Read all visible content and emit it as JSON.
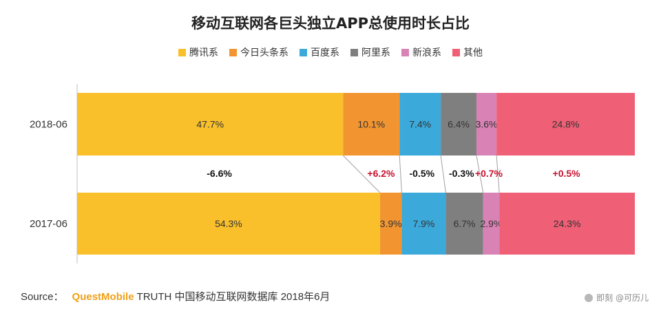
{
  "chart_data": {
    "type": "bar",
    "orientation": "horizontal",
    "stacked": true,
    "normalized": "100%",
    "title": "移动互联网各巨头独立APP总使用时长占比",
    "categories": [
      "2018-06",
      "2017-06"
    ],
    "series": [
      {
        "name": "腾讯系",
        "color": "#f9c02b",
        "values": [
          47.7,
          54.3
        ]
      },
      {
        "name": "今日头条系",
        "color": "#f29531",
        "values": [
          10.1,
          3.9
        ]
      },
      {
        "name": "百度系",
        "color": "#3ba9da",
        "values": [
          7.4,
          7.9
        ]
      },
      {
        "name": "阿里系",
        "color": "#7f7f7f",
        "values": [
          6.4,
          6.7
        ]
      },
      {
        "name": "新浪系",
        "color": "#d982b5",
        "values": [
          3.6,
          2.9
        ]
      },
      {
        "name": "其他",
        "color": "#ef5f75",
        "values": [
          24.8,
          24.3
        ]
      }
    ],
    "value_labels": [
      [
        "47.7%",
        "10.1%",
        "7.4%",
        "6.4%",
        "3.6%",
        "24.8%"
      ],
      [
        "54.3%",
        "3.9%",
        "7.9%",
        "6.7%",
        "2.9%",
        "24.3%"
      ]
    ],
    "changes": [
      "-6.6%",
      "+6.2%",
      "-0.5%",
      "-0.3%",
      "+0.7%",
      "+0.5%"
    ],
    "change_colors": {
      "negative": "#111111",
      "positive": "#c8102e"
    },
    "legend_position": "top",
    "grid": false
  },
  "footer": {
    "prefix": "Source：",
    "brand": "QuestMobile",
    "text": "TRUTH 中国移动互联网数据库 2018年6月"
  },
  "watermark": "即刻 @可历儿"
}
